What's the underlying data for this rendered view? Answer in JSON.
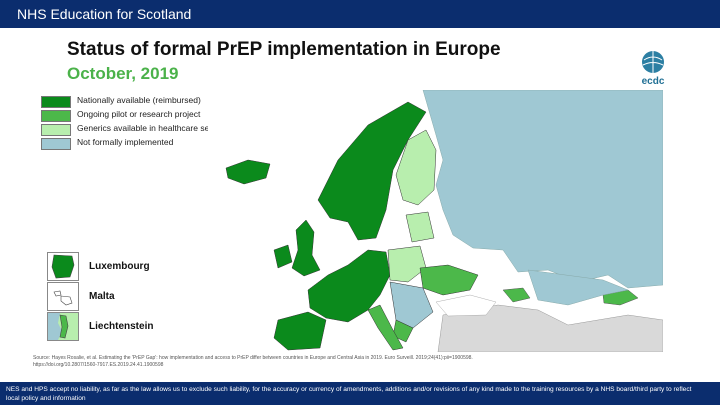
{
  "header": {
    "org": "NHS Education for Scotland"
  },
  "slide": {
    "title": "Status of formal PrEP implementation in Europe",
    "subtitle": "October, 2019",
    "legend": [
      {
        "label": "Nationally available (reimbursed)",
        "color": "#0b8a1c"
      },
      {
        "label": "Ongoing pilot or research project",
        "color": "#4cb84a"
      },
      {
        "label": "Generics available in healthcare settings (not fully reimbursed)",
        "color": "#b8eeae"
      },
      {
        "label": "Not formally implemented",
        "color": "#9fc8d3"
      }
    ],
    "insets": [
      {
        "label": "Luxembourg",
        "color": "#0b8a1c"
      },
      {
        "label": "Malta",
        "color": "#ffffff"
      },
      {
        "label": "Liechtenstein",
        "color": "#4cb84a"
      }
    ],
    "logo_text": "ecdc",
    "source": "Source: Hayes Rosalie, et al. Estimating the 'PrEP Gap': how implementation and access to PrEP differ between countries in Europe and Central Asia in 2019. Euro Surveill. 2019;24(41):pii=1900598. https://doi.org/10.2807/1560-7917.ES.2019.24.41.1900598"
  },
  "footer": {
    "disclaimer": "NES and HPS accept no liability, as far as the law allows us to exclude such liability, for the accuracy or currency of amendments, additions and/or revisions of any kind made to the training resources by a NHS board/third party to reflect local policy and information"
  },
  "colors": {
    "nav": "#0b2d6e",
    "national": "#0b8a1c",
    "pilot": "#4cb84a",
    "generic": "#b8eeae",
    "none": "#9fc8d3",
    "nodata": "#d9d9d9",
    "sea": "#ffffff"
  }
}
